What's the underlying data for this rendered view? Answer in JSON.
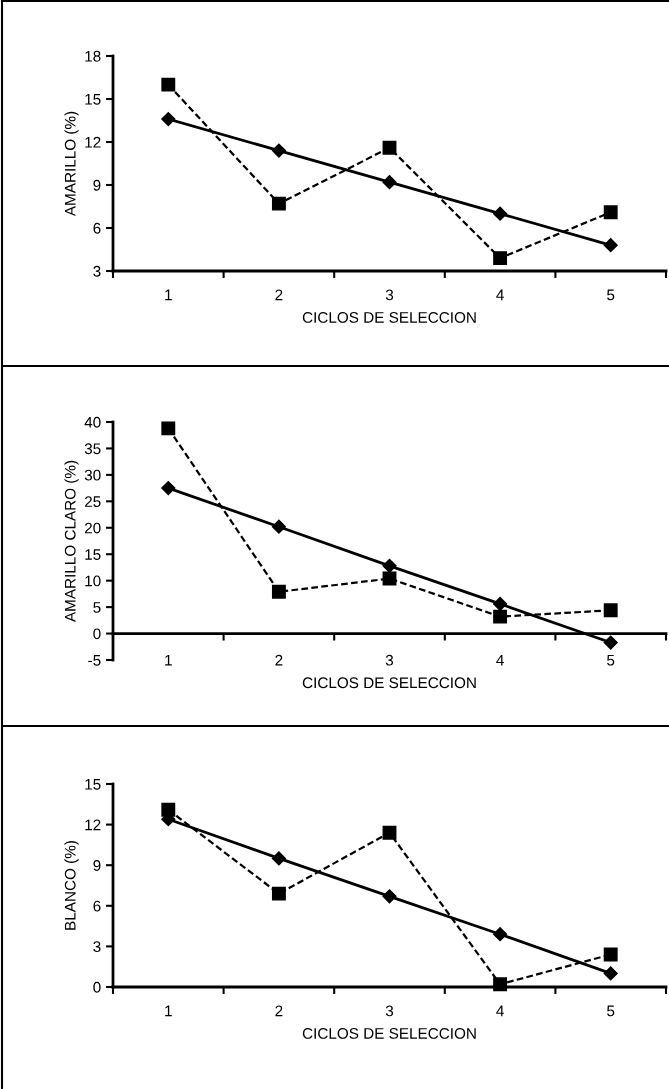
{
  "chart_data": [
    {
      "type": "line",
      "categories": [
        "1",
        "2",
        "3",
        "4",
        "5"
      ],
      "xlabel": "CICLOS DE SELECCION",
      "ylabel": "AMARILLO (%)",
      "ylim": [
        3,
        18
      ],
      "yticks": [
        3,
        6,
        9,
        12,
        15,
        18
      ],
      "series": [
        {
          "color": "#000000",
          "marker": "square",
          "line_style": "dashed",
          "values": [
            16.0,
            7.7,
            11.6,
            3.9,
            7.1
          ]
        },
        {
          "color": "#000000",
          "marker": "diamond",
          "line_style": "solid",
          "values": [
            13.6,
            11.4,
            9.2,
            7.0,
            4.8
          ]
        }
      ]
    },
    {
      "type": "line",
      "categories": [
        "1",
        "2",
        "3",
        "4",
        "5"
      ],
      "xlabel": "CICLOS DE SELECCION",
      "ylabel": "AMARILLO CLARO (%)",
      "ylim": [
        -5,
        40
      ],
      "yticks": [
        -5,
        0,
        5,
        10,
        15,
        20,
        25,
        30,
        35,
        40
      ],
      "series": [
        {
          "color": "#000000",
          "marker": "square",
          "line_style": "dashed",
          "values": [
            38.8,
            7.9,
            10.4,
            3.2,
            4.4
          ]
        },
        {
          "color": "#000000",
          "marker": "diamond",
          "line_style": "solid",
          "values": [
            27.5,
            20.2,
            12.8,
            5.6,
            -1.7
          ]
        }
      ]
    },
    {
      "type": "line",
      "categories": [
        "1",
        "2",
        "3",
        "4",
        "5"
      ],
      "xlabel": "CICLOS DE SELECCION",
      "ylabel": "BLANCO (%)",
      "ylim": [
        0,
        15
      ],
      "yticks": [
        0,
        3,
        6,
        9,
        12,
        15
      ],
      "series": [
        {
          "color": "#000000",
          "marker": "square",
          "line_style": "dashed",
          "values": [
            13.1,
            6.9,
            11.4,
            0.2,
            2.4
          ]
        },
        {
          "color": "#000000",
          "marker": "diamond",
          "line_style": "solid",
          "values": [
            12.4,
            9.5,
            6.7,
            3.9,
            1.0
          ]
        }
      ]
    }
  ]
}
